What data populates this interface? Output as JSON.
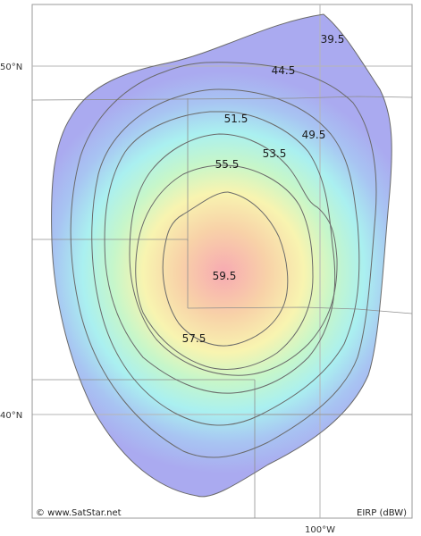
{
  "map": {
    "lat_labels": [
      "50°N",
      "40°N"
    ],
    "lon_labels": [
      "100°W"
    ],
    "contours": [
      "39.5",
      "44.5",
      "49.5",
      "51.5",
      "53.5",
      "55.5",
      "57.5",
      "59.5"
    ],
    "units": "EIRP (dBW)",
    "credit": "© www.SatStar.net"
  },
  "colors": {
    "outer": "#aaaaf0",
    "peak": "#f7aab2",
    "contour": "#6a6a6a",
    "grid": "#b5b5b5",
    "border": "#9a9a9a"
  }
}
